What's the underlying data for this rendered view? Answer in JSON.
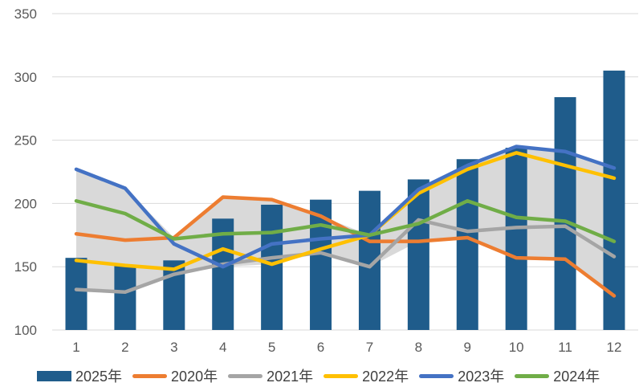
{
  "chart_data": {
    "type": "combo",
    "title": "",
    "categories": [
      "1",
      "2",
      "3",
      "4",
      "5",
      "6",
      "7",
      "8",
      "9",
      "10",
      "11",
      "12"
    ],
    "y_axis": {
      "min": 100,
      "max": 350,
      "step": 50,
      "ticks": [
        "100",
        "150",
        "200",
        "250",
        "300",
        "350"
      ]
    },
    "x_axis": {
      "label": "",
      "ticks": [
        "1",
        "2",
        "3",
        "4",
        "5",
        "6",
        "7",
        "8",
        "9",
        "10",
        "11",
        "12"
      ]
    },
    "grid": "horizontal",
    "legend_position": "bottom",
    "series": [
      {
        "id": "s2025",
        "name": "2025年",
        "type": "bar",
        "color": "#1F5C8B",
        "values": [
          157,
          151,
          155,
          188,
          199,
          203,
          210,
          219,
          235,
          244,
          284,
          305
        ]
      },
      {
        "id": "s2020",
        "name": "2020年",
        "type": "line",
        "color": "#ED7D31",
        "values": [
          176,
          171,
          173,
          205,
          203,
          190,
          170,
          170,
          173,
          157,
          156,
          127
        ]
      },
      {
        "id": "s2021",
        "name": "2021年",
        "type": "line",
        "color": "#A5A5A5",
        "values": [
          132,
          130,
          144,
          152,
          157,
          161,
          150,
          187,
          178,
          181,
          182,
          158
        ]
      },
      {
        "id": "s2022",
        "name": "2022年",
        "type": "line",
        "color": "#FFC000",
        "values": [
          155,
          151,
          148,
          164,
          152,
          164,
          175,
          208,
          227,
          240,
          230,
          220
        ]
      },
      {
        "id": "s2023",
        "name": "2023年",
        "type": "line",
        "color": "#4472C4",
        "values": [
          227,
          212,
          168,
          150,
          168,
          172,
          175,
          211,
          230,
          245,
          241,
          228
        ]
      },
      {
        "id": "s2024",
        "name": "2024年",
        "type": "line",
        "color": "#70AD47",
        "values": [
          202,
          192,
          172,
          176,
          177,
          183,
          175,
          184,
          202,
          189,
          186,
          170
        ]
      }
    ],
    "band": {
      "description": "min-max envelope of the five line series",
      "fill": "#D9D9D9"
    },
    "colors": {
      "gridline": "#D9D9D9",
      "axis_text": "#595959",
      "legend_text": "#404040",
      "background": "#FFFFFF"
    }
  }
}
